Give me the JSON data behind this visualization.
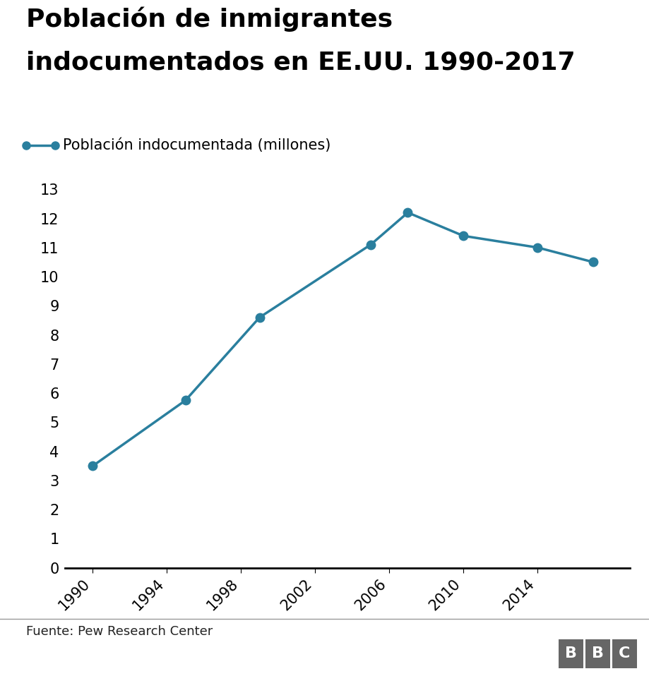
{
  "title_line1": "Población de inmigrantes",
  "title_line2": "indocumentados en EE.UU. 1990-2017",
  "legend_label": "Población indocumentada (millones)",
  "source_text": "Fuente: Pew Research Center",
  "years": [
    1990,
    1995,
    1999,
    2005,
    2007,
    2010,
    2014,
    2017
  ],
  "values": [
    3.5,
    5.75,
    8.6,
    11.1,
    12.2,
    11.4,
    11.0,
    10.5
  ],
  "line_color": "#2a7f9e",
  "marker_color": "#2a7f9e",
  "title_fontsize": 26,
  "legend_fontsize": 15,
  "tick_fontsize": 15,
  "source_fontsize": 13,
  "ylim": [
    0,
    13
  ],
  "yticks": [
    0,
    1,
    2,
    3,
    4,
    5,
    6,
    7,
    8,
    9,
    10,
    11,
    12,
    13
  ],
  "xtick_labels": [
    "1990",
    "1994",
    "1998",
    "2002",
    "2006",
    "2010",
    "2014"
  ],
  "xtick_positions": [
    1990,
    1994,
    1998,
    2002,
    2006,
    2010,
    2014
  ],
  "xlim": [
    1988.5,
    2019
  ],
  "background_color": "#ffffff",
  "footer_line_color": "#999999",
  "bbc_box_color": "#666666"
}
